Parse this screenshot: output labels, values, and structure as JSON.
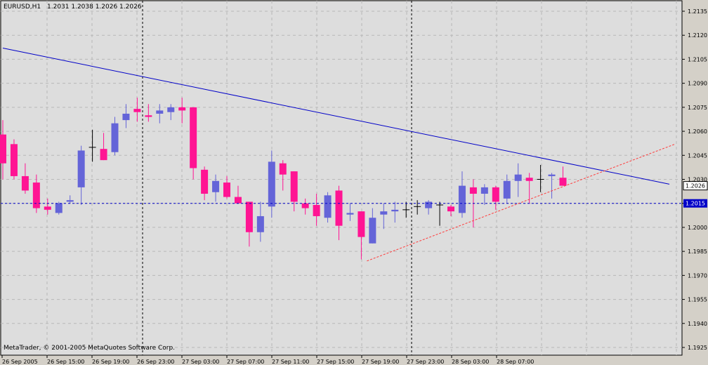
{
  "header": {
    "symbol_label": "EURUSD,H1",
    "ohlc": "1.2031 1.2038 1.2026 1.2026"
  },
  "footer": {
    "copyright": "MetaTrader, © 2001-2005 MetaQuotes Software Corp."
  },
  "colors": {
    "background": "#d4d0c8",
    "plot_bg": "#dddddd",
    "grid": "#b8b8b8",
    "bull": "#6464d8",
    "bear": "#ff1493",
    "trendline_down": "#0000c8",
    "trendline_up": "#ff3c3c",
    "price_line": "#0000c8"
  },
  "chart_data": {
    "type": "candlestick",
    "title": "EURUSD,H1",
    "ylim": [
      1.1925,
      1.214
    ],
    "y_ticks": [
      "1.2135",
      "1.2120",
      "1.2105",
      "1.2090",
      "1.2075",
      "1.2060",
      "1.2045",
      "1.2030",
      "1.2015",
      "1.2000",
      "1.1985",
      "1.1970",
      "1.1955",
      "1.1940",
      "1.1925"
    ],
    "x_tick_labels": [
      "26 Sep 2005",
      "26 Sep 15:00",
      "26 Sep 19:00",
      "26 Sep 23:00",
      "27 Sep 03:00",
      "27 Sep 07:00",
      "27 Sep 11:00",
      "27 Sep 15:00",
      "27 Sep 19:00",
      "27 Sep 23:00",
      "28 Sep 03:00",
      "28 Sep 07:00"
    ],
    "current_price": "1.2026",
    "horizontal_line_label": "1.2015",
    "horizontal_line_value": 1.2015,
    "candles": [
      {
        "o": 1.2058,
        "h": 1.2067,
        "l": 1.203,
        "c": 1.204
      },
      {
        "o": 1.2052,
        "h": 1.2055,
        "l": 1.203,
        "c": 1.2032
      },
      {
        "o": 1.2032,
        "h": 1.204,
        "l": 1.2021,
        "c": 1.2023
      },
      {
        "o": 1.2028,
        "h": 1.2033,
        "l": 1.2009,
        "c": 1.2012
      },
      {
        "o": 1.2013,
        "h": 1.2018,
        "l": 1.2008,
        "c": 1.2011
      },
      {
        "o": 1.2009,
        "h": 1.2016,
        "l": 1.2008,
        "c": 1.2015
      },
      {
        "o": 1.2016,
        "h": 1.202,
        "l": 1.2015,
        "c": 1.2017
      },
      {
        "o": 1.2025,
        "h": 1.2051,
        "l": 1.2014,
        "c": 1.2048
      },
      {
        "o": 1.205,
        "h": 1.2061,
        "l": 1.2041,
        "c": 1.205
      },
      {
        "o": 1.2049,
        "h": 1.2059,
        "l": 1.2042,
        "c": 1.2042
      },
      {
        "o": 1.2047,
        "h": 1.2069,
        "l": 1.2045,
        "c": 1.2065
      },
      {
        "o": 1.2067,
        "h": 1.2077,
        "l": 1.2062,
        "c": 1.2071
      },
      {
        "o": 1.2074,
        "h": 1.2081,
        "l": 1.2066,
        "c": 1.2072
      },
      {
        "o": 1.207,
        "h": 1.2077,
        "l": 1.2066,
        "c": 1.2069
      },
      {
        "o": 1.2071,
        "h": 1.2077,
        "l": 1.2065,
        "c": 1.2073
      },
      {
        "o": 1.2072,
        "h": 1.2077,
        "l": 1.2067,
        "c": 1.2075
      },
      {
        "o": 1.2075,
        "h": 1.2081,
        "l": 1.2065,
        "c": 1.2073
      },
      {
        "o": 1.2075,
        "h": 1.2075,
        "l": 1.203,
        "c": 1.2037
      },
      {
        "o": 1.2036,
        "h": 1.2038,
        "l": 1.2017,
        "c": 1.2021
      },
      {
        "o": 1.2022,
        "h": 1.2033,
        "l": 1.2016,
        "c": 1.2029
      },
      {
        "o": 1.2028,
        "h": 1.2032,
        "l": 1.2018,
        "c": 1.2019
      },
      {
        "o": 1.2019,
        "h": 1.2026,
        "l": 1.2015,
        "c": 1.2015
      },
      {
        "o": 1.2016,
        "h": 1.2016,
        "l": 1.1988,
        "c": 1.1997
      },
      {
        "o": 1.1997,
        "h": 1.2016,
        "l": 1.1991,
        "c": 1.2007
      },
      {
        "o": 1.2013,
        "h": 1.2048,
        "l": 1.2006,
        "c": 1.2041
      },
      {
        "o": 1.204,
        "h": 1.2042,
        "l": 1.2023,
        "c": 1.2033
      },
      {
        "o": 1.2035,
        "h": 1.2035,
        "l": 1.201,
        "c": 1.2016
      },
      {
        "o": 1.2015,
        "h": 1.2018,
        "l": 1.2008,
        "c": 1.2012
      },
      {
        "o": 1.2014,
        "h": 1.2021,
        "l": 1.2001,
        "c": 1.2007
      },
      {
        "o": 1.2006,
        "h": 1.2022,
        "l": 1.2003,
        "c": 1.202
      },
      {
        "o": 1.2023,
        "h": 1.2026,
        "l": 1.1992,
        "c": 1.2001
      },
      {
        "o": 1.2008,
        "h": 1.2015,
        "l": 1.2004,
        "c": 1.2009
      },
      {
        "o": 1.201,
        "h": 1.201,
        "l": 1.198,
        "c": 1.1994
      },
      {
        "o": 1.199,
        "h": 1.2012,
        "l": 1.199,
        "c": 1.2006
      },
      {
        "o": 1.2008,
        "h": 1.2015,
        "l": 1.1999,
        "c": 1.201
      },
      {
        "o": 1.201,
        "h": 1.2016,
        "l": 1.2003,
        "c": 1.2011
      },
      {
        "o": 1.2011,
        "h": 1.2016,
        "l": 1.2006,
        "c": 1.2011
      },
      {
        "o": 1.2013,
        "h": 1.2017,
        "l": 1.2008,
        "c": 1.2013
      },
      {
        "o": 1.2012,
        "h": 1.2017,
        "l": 1.2008,
        "c": 1.2016
      },
      {
        "o": 1.2014,
        "h": 1.2016,
        "l": 1.2001,
        "c": 1.2014
      },
      {
        "o": 1.2013,
        "h": 1.2014,
        "l": 1.2007,
        "c": 1.201
      },
      {
        "o": 1.2009,
        "h": 1.2035,
        "l": 1.2006,
        "c": 1.2026
      },
      {
        "o": 1.2025,
        "h": 1.203,
        "l": 1.2,
        "c": 1.2021
      },
      {
        "o": 1.2021,
        "h": 1.2027,
        "l": 1.2014,
        "c": 1.2025
      },
      {
        "o": 1.2025,
        "h": 1.2026,
        "l": 1.2011,
        "c": 1.2016
      },
      {
        "o": 1.2018,
        "h": 1.2033,
        "l": 1.2015,
        "c": 1.2029
      },
      {
        "o": 1.2029,
        "h": 1.204,
        "l": 1.2019,
        "c": 1.2033
      },
      {
        "o": 1.2031,
        "h": 1.2034,
        "l": 1.2015,
        "c": 1.2029
      },
      {
        "o": 1.203,
        "h": 1.2039,
        "l": 1.2022,
        "c": 1.203
      },
      {
        "o": 1.2032,
        "h": 1.2034,
        "l": 1.2018,
        "c": 1.2033
      },
      {
        "o": 1.2031,
        "h": 1.2038,
        "l": 1.2026,
        "c": 1.2026
      }
    ],
    "trendline_down": {
      "start": {
        "index": 0,
        "price": 1.2112
      },
      "end": {
        "index": 59.5,
        "price": 1.2027
      }
    },
    "trendline_up": {
      "start": {
        "index": 32.5,
        "price": 1.1979
      },
      "end": {
        "index": 60,
        "price": 1.2052
      }
    },
    "vertical_markers": [
      12.5,
      36.5
    ]
  }
}
